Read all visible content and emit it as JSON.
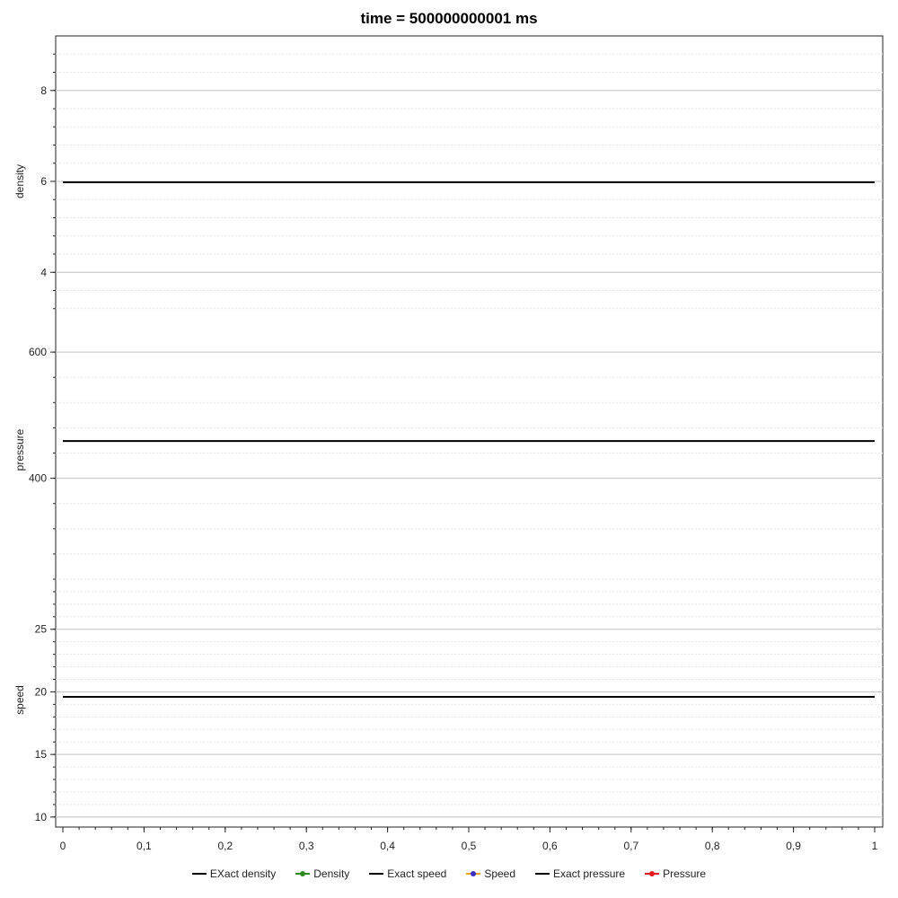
{
  "chart_data": {
    "type": "line",
    "title": "time = 500000000001 ms",
    "x": [
      0,
      1
    ],
    "xlim": [
      0,
      1
    ],
    "xticks": [
      "0",
      "0,1",
      "0,2",
      "0,3",
      "0,4",
      "0,5",
      "0,6",
      "0,7",
      "0,8",
      "0,9",
      "1"
    ],
    "grid": true,
    "legend_position": "bottom",
    "panels": [
      {
        "ylabel": "density",
        "ylim": [
          2.8,
          9.2
        ],
        "yticks": [
          4,
          6,
          8
        ],
        "series": [
          {
            "name": "EXact density",
            "color": "#000000",
            "marker": "none",
            "x": [
              0,
              1
            ],
            "values": [
              5.98,
              5.98
            ]
          },
          {
            "name": "Density",
            "color": "#2e8b1f",
            "marker": "dot",
            "x": [],
            "values": []
          }
        ]
      },
      {
        "ylabel": "pressure",
        "ylim": [
          250,
          640
        ],
        "yticks": [
          400,
          600
        ],
        "series": [
          {
            "name": "Exact pressure",
            "color": "#000000",
            "marker": "none",
            "x": [
              0,
              1
            ],
            "values": [
              459,
              459
            ]
          },
          {
            "name": "Pressure",
            "color": "#e41a1c",
            "marker": "dot",
            "x": [],
            "values": []
          }
        ]
      },
      {
        "ylabel": "speed",
        "ylim": [
          9.2,
          29.5
        ],
        "yticks": [
          10,
          15,
          20,
          25
        ],
        "series": [
          {
            "name": "Exact speed",
            "color": "#000000",
            "marker": "none",
            "x": [
              0,
              1
            ],
            "values": [
              19.6,
              19.6
            ]
          },
          {
            "name": "Speed",
            "color": "#e6a020",
            "marker": "dot",
            "x": [],
            "values": []
          }
        ]
      }
    ],
    "legend": [
      {
        "name": "EXact density",
        "color": "#000000",
        "marker": false
      },
      {
        "name": "Density",
        "color": "#2e8b1f",
        "marker": true
      },
      {
        "name": "Exact speed",
        "color": "#000000",
        "marker": false
      },
      {
        "name": "Speed",
        "color": "#e6a020",
        "marker": true,
        "marker_color": "#3a2fc0"
      },
      {
        "name": "Exact pressure",
        "color": "#000000",
        "marker": false
      },
      {
        "name": "Pressure",
        "color": "#e41a1c",
        "marker": true
      }
    ]
  }
}
